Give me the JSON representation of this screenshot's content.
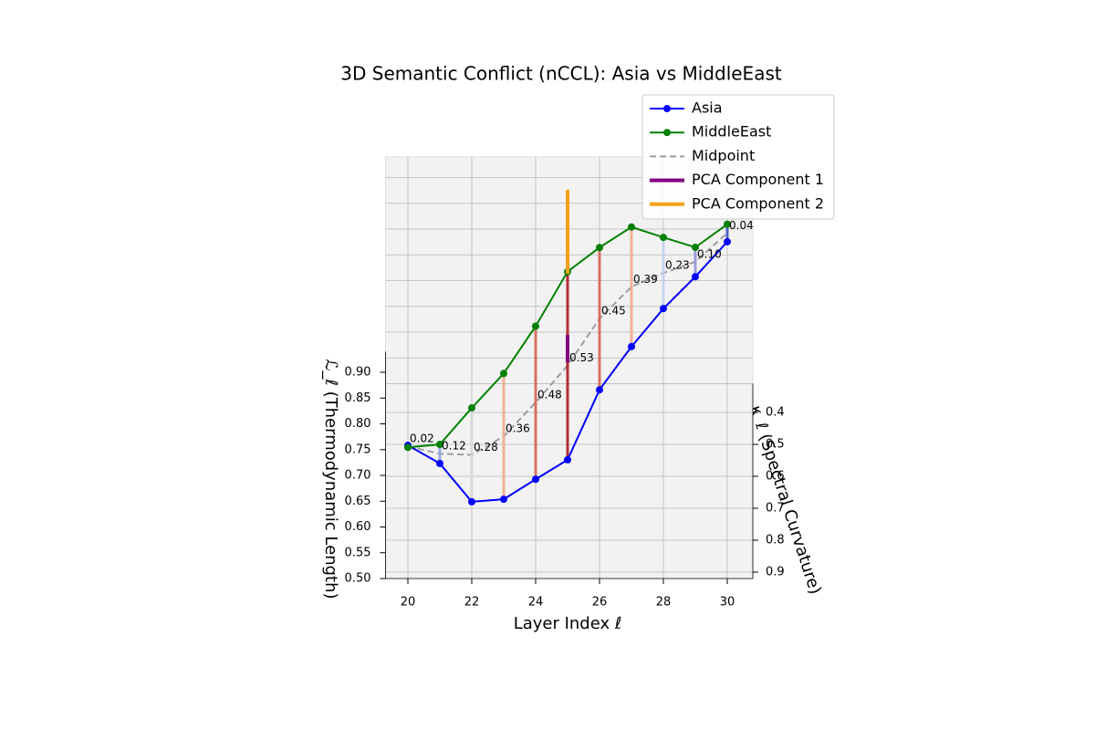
{
  "chart_data": {
    "type": "line3d",
    "title": "3D Semantic Conflict (nCCL): Asia vs MiddleEast",
    "x_label": "Layer Index ℓ",
    "y_label": "κ_ℓ (Spectral Curvature)",
    "z_label": "ℒ_ℓ (Thermodynamic Length)",
    "x": [
      20,
      21,
      22,
      23,
      24,
      25,
      26,
      27,
      28,
      29,
      30
    ],
    "xlim": [
      19.3,
      30.8
    ],
    "ylim": [
      0.31,
      0.92
    ],
    "zlim": [
      0.5,
      0.94
    ],
    "xticks": [
      20,
      22,
      24,
      26,
      28,
      30
    ],
    "yticks": [
      0.4,
      0.5,
      0.6,
      0.7,
      0.8,
      0.9
    ],
    "zticks": [
      {
        "value": 0.5,
        "label": "0.50"
      },
      0.55,
      {
        "value": 0.6,
        "label": "0.60"
      },
      0.65,
      {
        "value": 0.7,
        "label": "0.70"
      },
      0.75,
      {
        "value": 0.8,
        "label": "0.80"
      },
      0.85,
      {
        "value": 0.9,
        "label": "0.90"
      }
    ],
    "grid": true,
    "legend": "upper right",
    "series": [
      {
        "name": "Asia",
        "color": "#0000ff",
        "style": "solid-markers",
        "kappa": [
          0.85,
          0.81,
          0.77,
          0.73,
          0.69,
          0.65,
          0.61,
          0.57,
          0.53,
          0.49,
          0.45
        ],
        "values": [
          0.715,
          0.655,
          0.556,
          0.536,
          0.55,
          0.563,
          0.674,
          0.733,
          0.782,
          0.819,
          0.862
        ]
      },
      {
        "name": "MiddleEast",
        "color": "#008000",
        "style": "solid-markers",
        "kappa": [
          0.85,
          0.81,
          0.77,
          0.73,
          0.69,
          0.65,
          0.61,
          0.57,
          0.53,
          0.49,
          0.45
        ],
        "values": [
          0.711,
          0.692,
          0.738,
          0.78,
          0.847,
          0.928,
          0.95,
          0.965,
          0.92,
          0.876,
          0.896
        ]
      },
      {
        "name": "Midpoint",
        "color": "#a09aa8",
        "style": "dashed",
        "kappa": [
          0.85,
          0.81,
          0.77,
          0.73,
          0.69,
          0.65,
          0.61,
          0.57,
          0.53,
          0.49,
          0.45
        ],
        "values": [
          0.713,
          0.674,
          0.647,
          0.658,
          0.699,
          0.746,
          0.812,
          0.849,
          0.851,
          0.848,
          0.879
        ]
      }
    ],
    "components": [
      {
        "name": "PCA Component 1",
        "color": "#800080",
        "x": [
          25,
          25
        ],
        "kappa": [
          0.65,
          0.65
        ],
        "values": [
          0.805,
          0.752
        ]
      },
      {
        "name": "PCA Component 2",
        "color": "#f5a01a",
        "x": [
          25,
          25
        ],
        "kappa": [
          0.65,
          0.65
        ],
        "values": [
          0.924,
          1.087
        ]
      }
    ],
    "conflict": {
      "values": [
        0.02,
        0.12,
        0.28,
        0.36,
        0.48,
        0.53,
        0.45,
        0.39,
        0.23,
        0.1,
        0.04
      ],
      "value_labels": [
        "0.02",
        "0.12",
        "0.28",
        "0.36",
        "0.48",
        "0.53",
        "0.45",
        "0.39",
        "0.23",
        "0.10",
        "0.04"
      ],
      "colors": [
        "#3b4cc0",
        "#8f9ee0",
        "#d8d8d8",
        "#f0a886",
        "#d6604d",
        "#a50f15",
        "#d6604d",
        "#f0a886",
        "#c5d4ef",
        "#8f8fd8",
        "#3b4cc0"
      ]
    }
  }
}
